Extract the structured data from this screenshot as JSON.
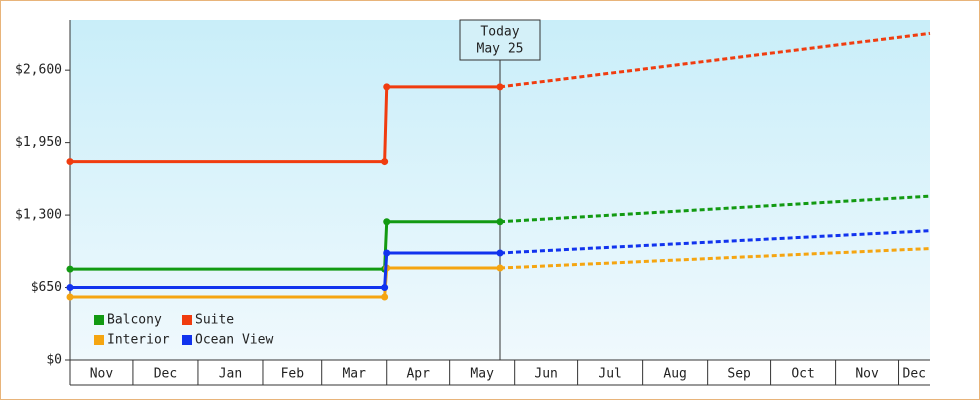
{
  "chart_data": {
    "type": "line",
    "xlim": [
      0,
      410
    ],
    "xticks": [
      {
        "value": 0,
        "label": "Nov"
      },
      {
        "value": 30,
        "label": "Dec"
      },
      {
        "value": 61,
        "label": "Jan"
      },
      {
        "value": 92,
        "label": "Feb"
      },
      {
        "value": 120,
        "label": "Mar"
      },
      {
        "value": 151,
        "label": "Apr"
      },
      {
        "value": 181,
        "label": "May"
      },
      {
        "value": 212,
        "label": "Jun"
      },
      {
        "value": 242,
        "label": "Jul"
      },
      {
        "value": 273,
        "label": "Aug"
      },
      {
        "value": 304,
        "label": "Sep"
      },
      {
        "value": 334,
        "label": "Oct"
      },
      {
        "value": 365,
        "label": "Nov"
      },
      {
        "value": 395,
        "label": "Dec"
      }
    ],
    "ylim": [
      0,
      3050
    ],
    "yticks": [
      {
        "value": 0,
        "label": "$0"
      },
      {
        "value": 650,
        "label": "$650"
      },
      {
        "value": 1300,
        "label": "$1,300"
      },
      {
        "value": 1950,
        "label": "$1,950"
      },
      {
        "value": 2600,
        "label": "$2,600"
      }
    ],
    "annotation": {
      "x": 205,
      "lines": [
        "Today",
        "May 25"
      ]
    },
    "series": [
      {
        "name": "Balcony",
        "color": "#129a12",
        "x": [
          0,
          150,
          151,
          205
        ],
        "values": [
          815,
          815,
          1240,
          1240
        ],
        "forecast": {
          "x": [
            205,
            410
          ],
          "values": [
            1240,
            1470
          ]
        }
      },
      {
        "name": "Suite",
        "color": "#f03c0f",
        "x": [
          0,
          150,
          151,
          205
        ],
        "values": [
          1780,
          1780,
          2450,
          2450
        ],
        "forecast": {
          "x": [
            205,
            410
          ],
          "values": [
            2450,
            2930
          ]
        }
      },
      {
        "name": "Interior",
        "color": "#f5a511",
        "x": [
          0,
          150,
          151,
          205
        ],
        "values": [
          565,
          565,
          825,
          825
        ],
        "forecast": {
          "x": [
            205,
            410
          ],
          "values": [
            825,
            1000
          ]
        }
      },
      {
        "name": "Ocean View",
        "color": "#1133ee",
        "x": [
          0,
          150,
          151,
          205
        ],
        "values": [
          650,
          650,
          960,
          960
        ],
        "forecast": {
          "x": [
            205,
            410
          ],
          "values": [
            960,
            1160
          ]
        }
      }
    ]
  }
}
